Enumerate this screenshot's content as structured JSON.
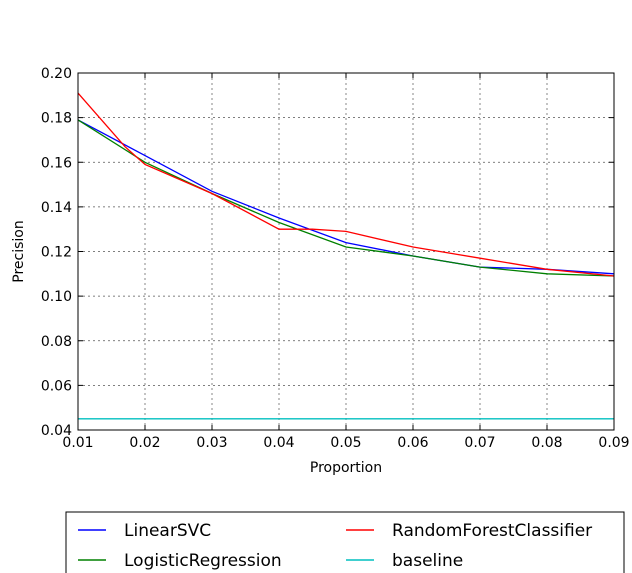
{
  "chart_data": {
    "type": "line",
    "title": "",
    "xlabel": "Proportion",
    "ylabel": "Precision",
    "xlim": [
      0.01,
      0.09
    ],
    "ylim": [
      0.04,
      0.2
    ],
    "x_ticks": [
      0.01,
      0.02,
      0.03,
      0.04,
      0.05,
      0.06,
      0.07,
      0.08,
      0.09
    ],
    "x_tick_labels": [
      "0.01",
      "0.02",
      "0.03",
      "0.04",
      "0.05",
      "0.06",
      "0.07",
      "0.08",
      "0.09"
    ],
    "y_ticks": [
      0.04,
      0.06,
      0.08,
      0.1,
      0.12,
      0.14,
      0.16,
      0.18,
      0.2
    ],
    "y_tick_labels": [
      "0.04",
      "0.06",
      "0.08",
      "0.10",
      "0.12",
      "0.14",
      "0.16",
      "0.18",
      "0.20"
    ],
    "grid": true,
    "legend_position": "bottom",
    "series": [
      {
        "name": "LinearSVC",
        "color": "#0000ff",
        "x": [
          0.01,
          0.02,
          0.03,
          0.04,
          0.05,
          0.06,
          0.07,
          0.08,
          0.09
        ],
        "y": [
          0.179,
          0.163,
          0.147,
          0.135,
          0.124,
          0.118,
          0.113,
          0.112,
          0.11
        ]
      },
      {
        "name": "LogisticRegression",
        "color": "#008000",
        "x": [
          0.01,
          0.02,
          0.03,
          0.04,
          0.05,
          0.06,
          0.07,
          0.08,
          0.09
        ],
        "y": [
          0.179,
          0.16,
          0.146,
          0.133,
          0.122,
          0.118,
          0.113,
          0.11,
          0.109
        ]
      },
      {
        "name": "RandomForestClassifier",
        "color": "#ff0000",
        "x": [
          0.01,
          0.017,
          0.02,
          0.03,
          0.04,
          0.045,
          0.05,
          0.06,
          0.07,
          0.08,
          0.09
        ],
        "y": [
          0.191,
          0.167,
          0.159,
          0.146,
          0.13,
          0.13,
          0.129,
          0.122,
          0.117,
          0.112,
          0.109
        ]
      },
      {
        "name": "baseline",
        "color": "#00bfbf",
        "x": [
          0.01,
          0.09
        ],
        "y": [
          0.045,
          0.045
        ]
      }
    ]
  }
}
